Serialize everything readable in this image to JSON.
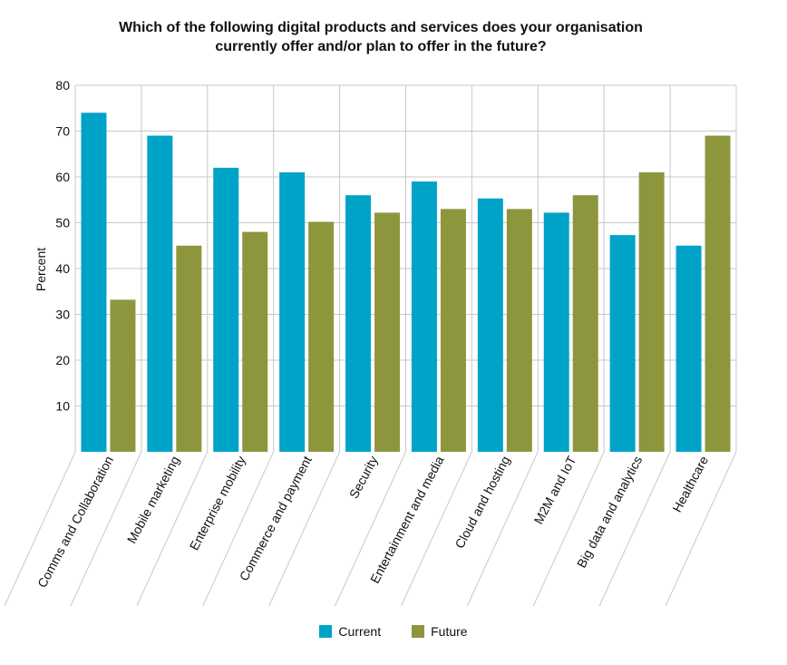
{
  "chart_data": {
    "type": "bar",
    "title_lines": [
      "Which of the following digital products and services does your organisation",
      "currently offer and/or plan to offer in the future?"
    ],
    "ylabel": "Percent",
    "xlabel": "",
    "ylim": [
      0,
      80
    ],
    "yticks": [
      10,
      20,
      30,
      40,
      50,
      60,
      70,
      80
    ],
    "grid": true,
    "legend_position": "bottom-center",
    "categories": [
      "Comms and Collaboration",
      "Mobile marketing",
      "Enterprise mobility",
      "Commerce and payment",
      "Security",
      "Entertainment and media",
      "Cloud and hosting",
      "M2M and IoT",
      "Big data and analytics",
      "Healthcare"
    ],
    "series": [
      {
        "name": "Current",
        "color": "#00A3C8",
        "values": [
          74,
          69,
          62,
          61,
          56,
          59,
          55.3,
          52.2,
          47.3,
          45
        ]
      },
      {
        "name": "Future",
        "color": "#8E963D",
        "values": [
          33.2,
          45,
          48,
          50.2,
          52.2,
          53,
          53,
          56,
          61,
          69
        ]
      }
    ]
  }
}
